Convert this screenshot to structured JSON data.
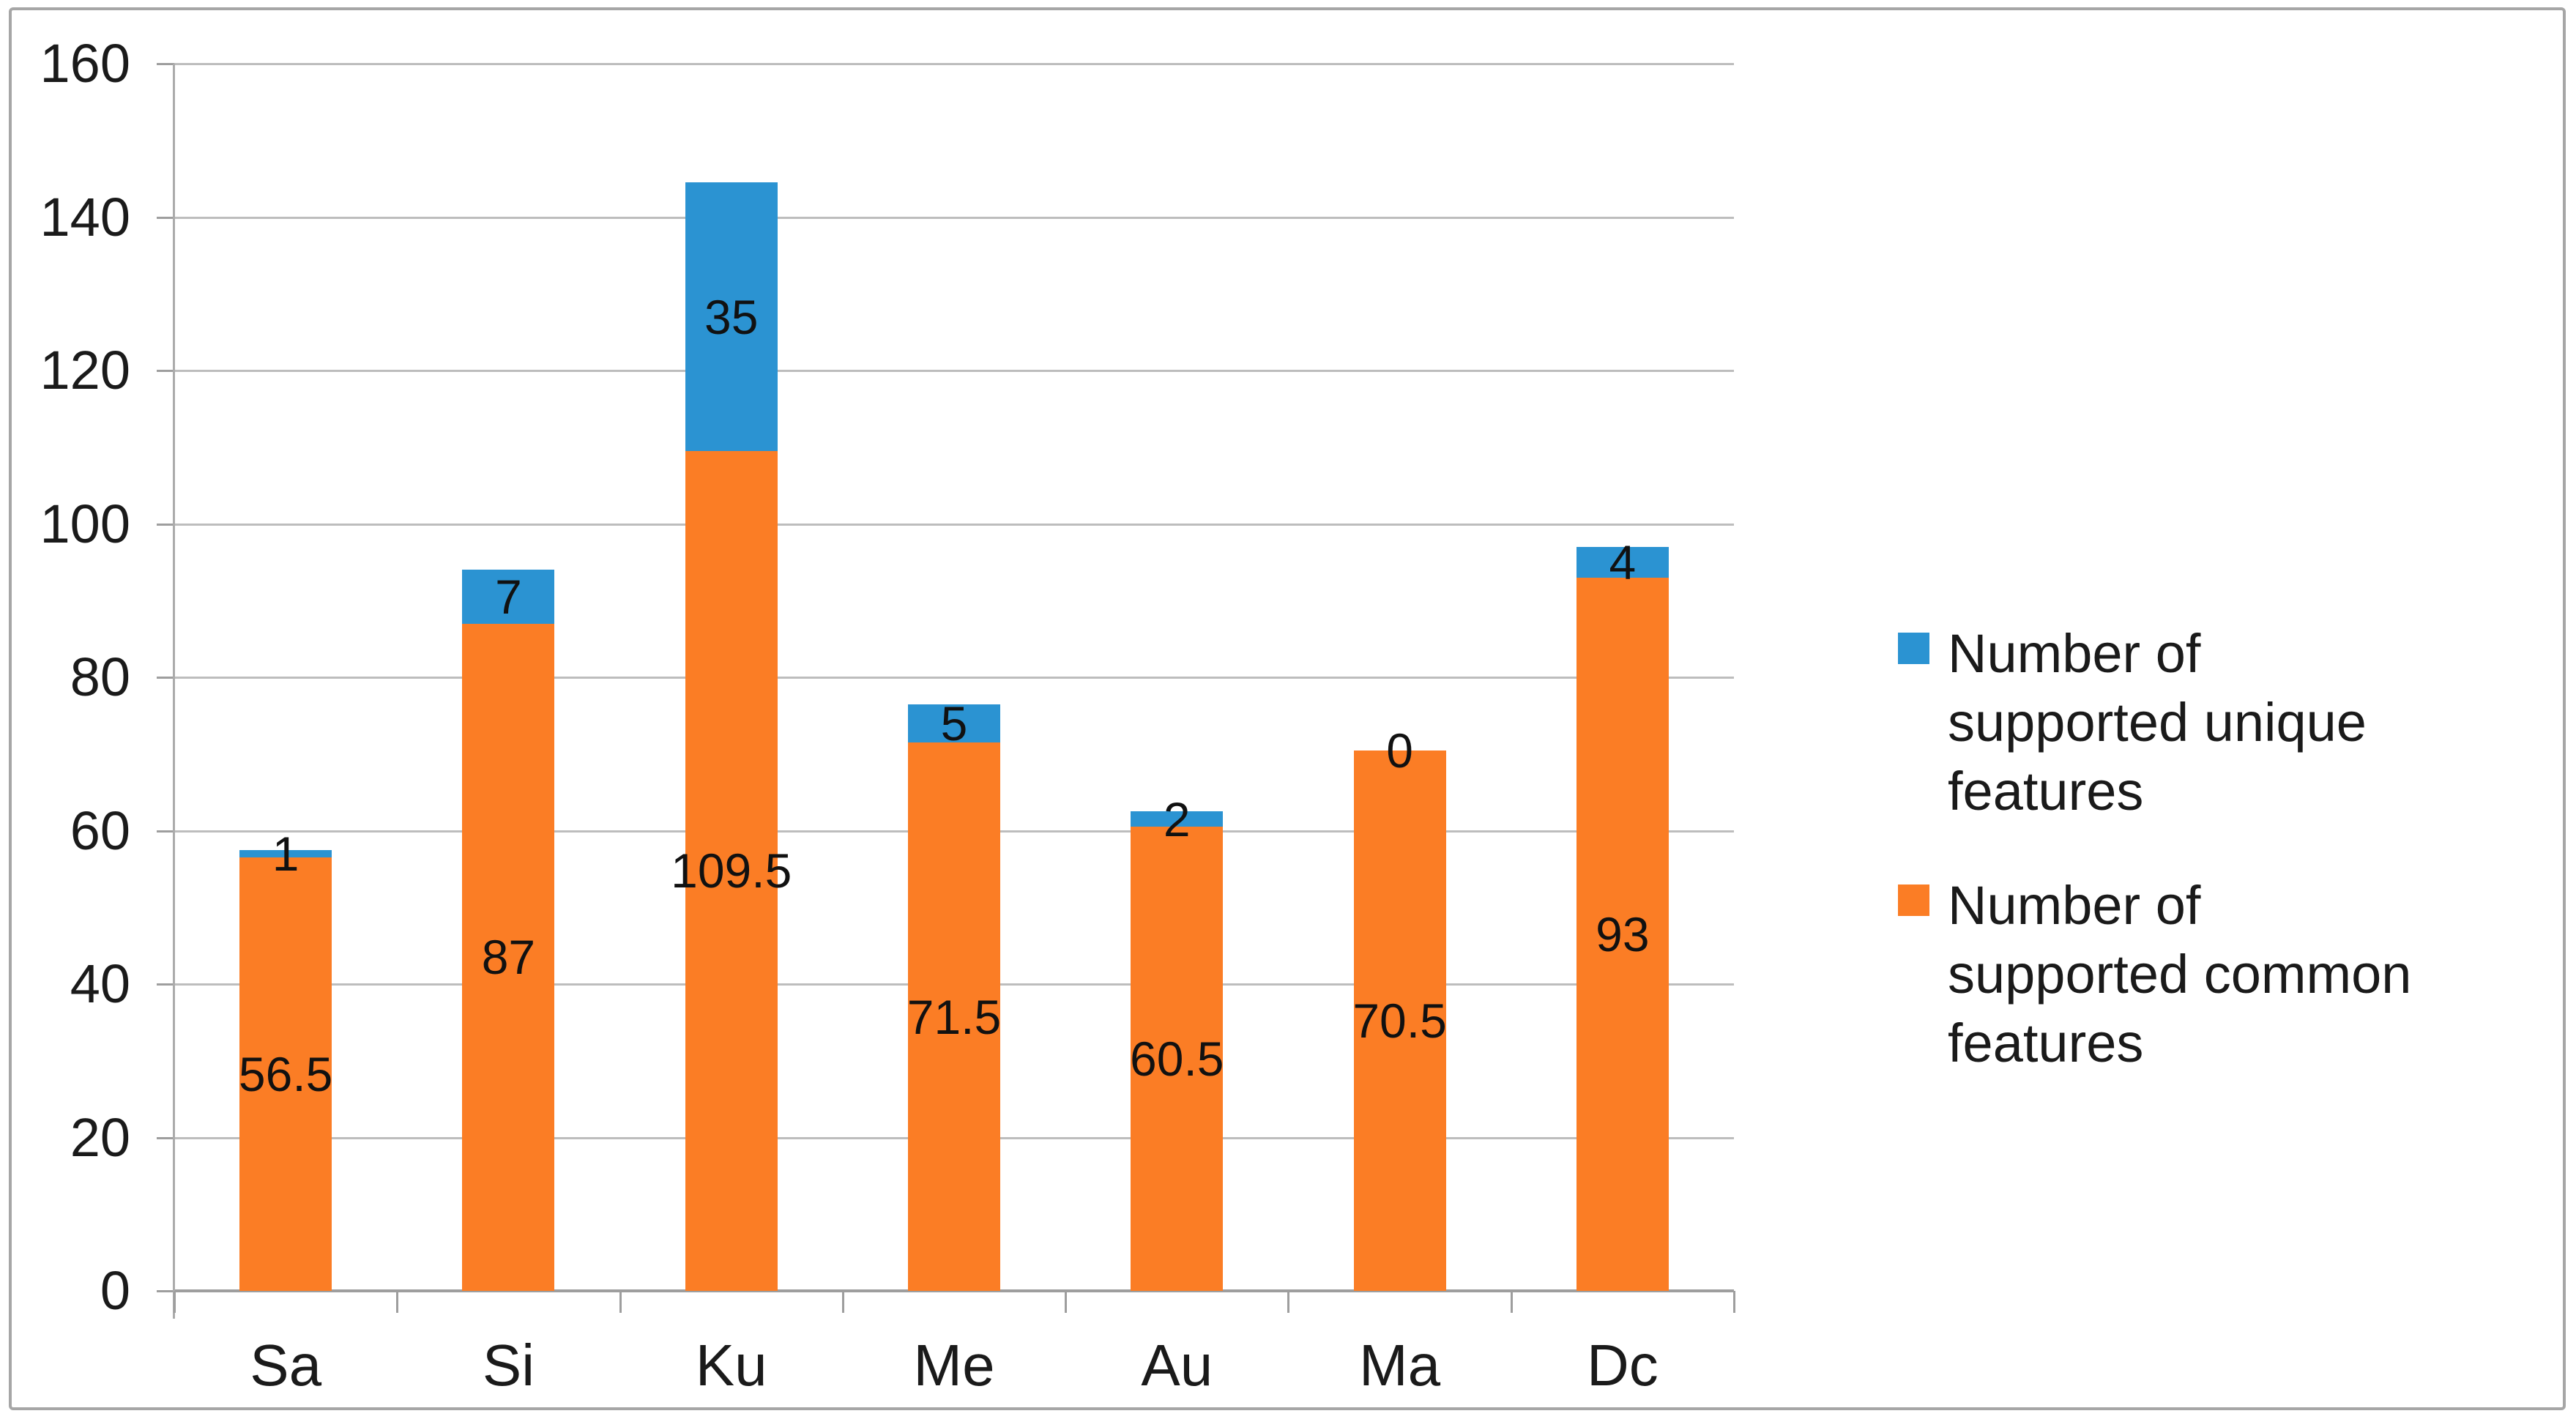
{
  "chart_data": {
    "type": "bar",
    "stacked": true,
    "orientation": "vertical",
    "categories": [
      "Sa",
      "Si",
      "Ku",
      "Me",
      "Au",
      "Ma",
      "Dc"
    ],
    "series": [
      {
        "name": "Number of supported common features",
        "color": "#FB7D25",
        "values": [
          56.5,
          87,
          109.5,
          71.5,
          60.5,
          70.5,
          93
        ]
      },
      {
        "name": "Number of supported unique features",
        "color": "#2B93D2",
        "values": [
          1,
          7,
          35,
          5,
          2,
          0,
          4
        ]
      }
    ],
    "stack_totals": [
      57.5,
      94,
      144.5,
      76.5,
      62.5,
      70.5,
      97
    ],
    "title": "",
    "xlabel": "",
    "ylabel": "",
    "ylim": [
      0,
      160
    ],
    "yticks": [
      "0",
      "20",
      "40",
      "60",
      "80",
      "100",
      "120",
      "140",
      "160"
    ],
    "grid": true,
    "data_labels": "center",
    "legend_position": "right"
  },
  "legend": {
    "items": [
      {
        "swatch": "unique",
        "color": "#2B93D2",
        "label": "Number of supported unique features"
      },
      {
        "swatch": "common",
        "color": "#FB7D25",
        "label": "Number of supported common features"
      }
    ]
  },
  "style": {
    "frame_border_color": "#A6A6A6",
    "gridline_color": "#BDBDBD",
    "axis_color": "#9E9E9E",
    "text_color": "#1A1A1A",
    "background": "#FFFFFF"
  }
}
